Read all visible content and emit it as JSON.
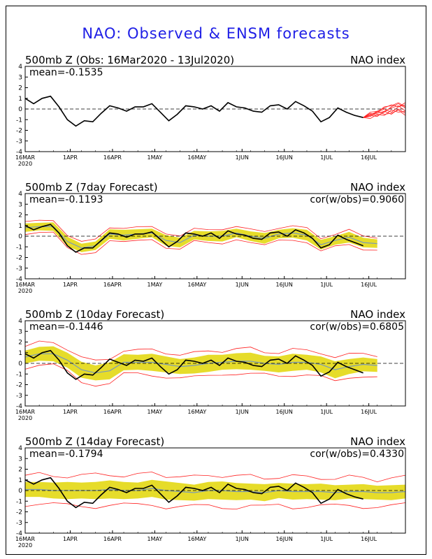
{
  "page": {
    "title": "NAO: Observed & ENSM forecasts",
    "title_color": "#1f1fe6"
  },
  "colors": {
    "observed": "#000000",
    "ensemble_spread": "#e6dc2a",
    "ensemble_members": "#ff2020",
    "ensemble_mean": "#7a9ab8",
    "zero_line": "#000000"
  },
  "chart_data": [
    {
      "type": "line",
      "title": "500mb Z (Obs: 16Mar2020 - 13Jul2020)",
      "index_label": "NAO index",
      "stat_label": "mean=-0.1535",
      "cor_label": "",
      "ylim": [
        -4,
        4
      ],
      "yticks": [
        "4",
        "3",
        "2",
        "1",
        "0",
        "-1",
        "-2",
        "-3",
        "-4"
      ],
      "xlim_days": [
        0,
        135
      ],
      "xticks": [
        {
          "label": "16MAR",
          "sub": "2020",
          "day": 0
        },
        {
          "label": "1APR",
          "sub": "",
          "day": 16
        },
        {
          "label": "16APR",
          "sub": "",
          "day": 31
        },
        {
          "label": "1MAY",
          "sub": "",
          "day": 46
        },
        {
          "label": "16MAY",
          "sub": "",
          "day": 61
        },
        {
          "label": "1JUN",
          "sub": "",
          "day": 77
        },
        {
          "label": "16JUN",
          "sub": "",
          "day": 92
        },
        {
          "label": "1JUL",
          "sub": "",
          "day": 107
        },
        {
          "label": "16JUL",
          "sub": "",
          "day": 122
        }
      ],
      "observed": {
        "x": [
          0,
          3,
          6,
          9,
          12,
          15,
          18,
          21,
          24,
          27,
          30,
          33,
          36,
          39,
          42,
          45,
          48,
          51,
          54,
          57,
          60,
          63,
          66,
          69,
          72,
          75,
          78,
          81,
          84,
          87,
          90,
          93,
          96,
          99,
          102,
          105,
          108,
          111,
          114,
          117,
          120
        ],
        "y": [
          1.0,
          0.5,
          1.0,
          1.2,
          0.2,
          -1.0,
          -1.6,
          -1.1,
          -1.2,
          -0.4,
          0.3,
          0.1,
          -0.2,
          0.2,
          0.2,
          0.5,
          -0.3,
          -1.1,
          -0.5,
          0.3,
          0.2,
          0.0,
          0.3,
          -0.2,
          0.6,
          0.2,
          0.1,
          -0.2,
          -0.3,
          0.3,
          0.4,
          0.0,
          0.7,
          0.3,
          -0.2,
          -1.2,
          -0.8,
          0.1,
          -0.3,
          -0.6,
          -0.8
        ]
      },
      "members_from_day": 120,
      "members_to_day": 135,
      "members": [
        [
          -0.8,
          -0.5,
          -0.4,
          -0.2,
          0.1,
          0.3,
          -0.2
        ],
        [
          -0.8,
          -0.7,
          -0.3,
          0.0,
          -0.3,
          0.2,
          0.4
        ],
        [
          -0.8,
          -0.6,
          -0.2,
          -0.5,
          -0.4,
          -0.1,
          -0.6
        ],
        [
          -0.8,
          -0.4,
          -0.6,
          -0.3,
          0.2,
          0.5,
          0.1
        ],
        [
          -0.8,
          -0.9,
          -0.5,
          -0.6,
          -0.1,
          -0.3,
          -0.2
        ],
        [
          -0.8,
          -0.5,
          -0.3,
          0.2,
          0.3,
          0.6,
          0.2
        ],
        [
          -0.8,
          -0.6,
          -0.7,
          -0.2,
          -0.5,
          0.0,
          -0.4
        ],
        [
          -0.8,
          -0.3,
          -0.2,
          0.1,
          0.4,
          0.2,
          0.6
        ]
      ]
    },
    {
      "type": "line",
      "title": "500mb Z (7day Forecast)",
      "index_label": "NAO index",
      "stat_label": "mean=-0.1193",
      "cor_label": "cor(w/obs)=0.9060",
      "ylim": [
        -4,
        4
      ],
      "yticks": [
        "4",
        "3",
        "2",
        "1",
        "0",
        "-1",
        "-2",
        "-3",
        "-4"
      ],
      "xlim_days": [
        0,
        135
      ],
      "xticks": [
        {
          "label": "16MAR",
          "sub": "2020",
          "day": 0
        },
        {
          "label": "1APR",
          "sub": "",
          "day": 16
        },
        {
          "label": "16APR",
          "sub": "",
          "day": 31
        },
        {
          "label": "1MAY",
          "sub": "",
          "day": 46
        },
        {
          "label": "16MAY",
          "sub": "",
          "day": 61
        },
        {
          "label": "1JUN",
          "sub": "",
          "day": 77
        },
        {
          "label": "16JUN",
          "sub": "",
          "day": 92
        },
        {
          "label": "1JUL",
          "sub": "",
          "day": 107
        },
        {
          "label": "16JUL",
          "sub": "",
          "day": 122
        }
      ],
      "observed": {
        "x": [
          0,
          3,
          6,
          9,
          12,
          15,
          18,
          21,
          24,
          27,
          30,
          33,
          36,
          39,
          42,
          45,
          48,
          51,
          54,
          57,
          60,
          63,
          66,
          69,
          72,
          75,
          78,
          81,
          84,
          87,
          90,
          93,
          96,
          99,
          102,
          105,
          108,
          111,
          114,
          117,
          120
        ],
        "y": [
          1.0,
          0.6,
          0.9,
          1.1,
          0.3,
          -0.9,
          -1.5,
          -1.1,
          -1.1,
          -0.4,
          0.3,
          0.2,
          -0.1,
          0.2,
          0.2,
          0.4,
          -0.3,
          -1.0,
          -0.5,
          0.3,
          0.2,
          0.0,
          0.3,
          -0.2,
          0.5,
          0.2,
          0.1,
          -0.2,
          -0.3,
          0.3,
          0.4,
          0.0,
          0.6,
          0.3,
          -0.2,
          -1.1,
          -0.8,
          0.1,
          -0.3,
          -0.6,
          -0.9
        ]
      },
      "mean": {
        "x": [
          0,
          5,
          10,
          15,
          20,
          25,
          30,
          35,
          40,
          45,
          50,
          55,
          60,
          65,
          70,
          75,
          80,
          85,
          90,
          95,
          100,
          105,
          110,
          115,
          120,
          125
        ],
        "y": [
          0.8,
          0.9,
          0.9,
          -0.5,
          -1.1,
          -0.9,
          0.2,
          0.1,
          0.2,
          0.3,
          -0.4,
          -0.6,
          0.1,
          0.0,
          0.0,
          0.3,
          0.0,
          -0.2,
          0.2,
          0.3,
          0.1,
          -0.8,
          -0.4,
          -0.1,
          -0.6,
          -0.7
        ]
      },
      "band_half_width": [
        0.4,
        0.35,
        0.4,
        0.45,
        0.4,
        0.4,
        0.45,
        0.5,
        0.45,
        0.4,
        0.5,
        0.45,
        0.4,
        0.45,
        0.5,
        0.4,
        0.45,
        0.5,
        0.4,
        0.45,
        0.5,
        0.45,
        0.4,
        0.5,
        0.45,
        0.4
      ],
      "envelope_extra": 0.25
    },
    {
      "type": "line",
      "title": "500mb Z (10day Forecast)",
      "index_label": "NAO index",
      "stat_label": "mean=-0.1446",
      "cor_label": "cor(w/obs)=0.6805",
      "ylim": [
        -4,
        4
      ],
      "yticks": [
        "4",
        "3",
        "2",
        "1",
        "0",
        "-1",
        "-2",
        "-3",
        "-4"
      ],
      "xlim_days": [
        0,
        135
      ],
      "xticks": [
        {
          "label": "16MAR",
          "sub": "2020",
          "day": 0
        },
        {
          "label": "1APR",
          "sub": "",
          "day": 16
        },
        {
          "label": "16APR",
          "sub": "",
          "day": 31
        },
        {
          "label": "1MAY",
          "sub": "",
          "day": 46
        },
        {
          "label": "16MAY",
          "sub": "",
          "day": 61
        },
        {
          "label": "1JUN",
          "sub": "",
          "day": 77
        },
        {
          "label": "16JUN",
          "sub": "",
          "day": 92
        },
        {
          "label": "1JUL",
          "sub": "",
          "day": 107
        },
        {
          "label": "16JUL",
          "sub": "",
          "day": 122
        }
      ],
      "observed": {
        "x": [
          0,
          3,
          6,
          9,
          12,
          15,
          18,
          21,
          24,
          27,
          30,
          33,
          36,
          39,
          42,
          45,
          48,
          51,
          54,
          57,
          60,
          63,
          66,
          69,
          72,
          75,
          78,
          81,
          84,
          87,
          90,
          93,
          96,
          99,
          102,
          105,
          108,
          111,
          114,
          117,
          120
        ],
        "y": [
          0.9,
          0.5,
          1.0,
          1.2,
          0.3,
          -0.9,
          -1.5,
          -1.0,
          -1.1,
          -0.4,
          0.4,
          0.1,
          -0.2,
          0.3,
          0.2,
          0.5,
          -0.3,
          -1.0,
          -0.6,
          0.3,
          0.2,
          0.0,
          0.3,
          -0.2,
          0.5,
          0.2,
          0.1,
          -0.2,
          -0.3,
          0.3,
          0.4,
          0.0,
          0.7,
          0.3,
          -0.2,
          -1.2,
          -0.8,
          0.1,
          -0.3,
          -0.6,
          -0.9
        ]
      },
      "mean": {
        "x": [
          0,
          5,
          10,
          15,
          20,
          25,
          30,
          35,
          40,
          45,
          50,
          55,
          60,
          65,
          70,
          75,
          80,
          85,
          90,
          95,
          100,
          105,
          110,
          115,
          120,
          125
        ],
        "y": [
          0.6,
          0.9,
          0.9,
          0.3,
          -0.6,
          -0.9,
          -0.7,
          0.1,
          0.1,
          0.1,
          -0.1,
          -0.3,
          -0.2,
          0.0,
          0.1,
          0.2,
          0.2,
          0.0,
          -0.1,
          0.1,
          0.1,
          -0.1,
          -0.6,
          -0.3,
          -0.1,
          -0.2
        ]
      },
      "band_half_width": [
        0.6,
        0.65,
        0.7,
        0.7,
        0.75,
        0.7,
        0.8,
        0.75,
        0.7,
        0.8,
        0.75,
        0.7,
        0.75,
        0.8,
        0.7,
        0.75,
        0.8,
        0.7,
        0.75,
        0.8,
        0.7,
        0.75,
        0.8,
        0.7,
        0.65,
        0.6
      ],
      "envelope_extra": 0.55
    },
    {
      "type": "line",
      "title": "500mb Z (14day Forecast)",
      "index_label": "NAO index",
      "stat_label": "mean=-0.1794",
      "cor_label": "cor(w/obs)=0.4330",
      "ylim": [
        -4,
        4
      ],
      "yticks": [
        "4",
        "3",
        "2",
        "1",
        "0",
        "-1",
        "-2",
        "-3",
        "-4"
      ],
      "xlim_days": [
        0,
        135
      ],
      "xticks": [
        {
          "label": "16MAR",
          "sub": "2020",
          "day": 0
        },
        {
          "label": "1APR",
          "sub": "",
          "day": 16
        },
        {
          "label": "16APR",
          "sub": "",
          "day": 31
        },
        {
          "label": "1MAY",
          "sub": "",
          "day": 46
        },
        {
          "label": "16MAY",
          "sub": "",
          "day": 61
        },
        {
          "label": "1JUN",
          "sub": "",
          "day": 77
        },
        {
          "label": "16JUN",
          "sub": "",
          "day": 92
        },
        {
          "label": "1JUL",
          "sub": "",
          "day": 107
        },
        {
          "label": "16JUL",
          "sub": "",
          "day": 122
        }
      ],
      "observed": {
        "x": [
          0,
          3,
          6,
          9,
          12,
          15,
          18,
          21,
          24,
          27,
          30,
          33,
          36,
          39,
          42,
          45,
          48,
          51,
          54,
          57,
          60,
          63,
          66,
          69,
          72,
          75,
          78,
          81,
          84,
          87,
          90,
          93,
          96,
          99,
          102,
          105,
          108,
          111,
          114,
          117,
          120
        ],
        "y": [
          1.0,
          0.6,
          1.0,
          1.2,
          0.2,
          -1.0,
          -1.6,
          -1.1,
          -1.2,
          -0.4,
          0.3,
          0.1,
          -0.2,
          0.2,
          0.2,
          0.5,
          -0.3,
          -1.1,
          -0.5,
          0.3,
          0.2,
          0.0,
          0.3,
          -0.2,
          0.6,
          0.2,
          0.1,
          -0.2,
          -0.3,
          0.3,
          0.4,
          0.0,
          0.7,
          0.3,
          -0.2,
          -1.2,
          -0.8,
          0.1,
          -0.3,
          -0.6,
          -0.8
        ]
      },
      "mean": {
        "x": [
          0,
          5,
          10,
          15,
          20,
          25,
          30,
          35,
          40,
          45,
          50,
          55,
          60,
          65,
          70,
          75,
          80,
          85,
          90,
          95,
          100,
          105,
          110,
          115,
          120,
          125,
          130,
          135
        ],
        "y": [
          0.1,
          0.1,
          0.0,
          0.0,
          0.0,
          0.0,
          0.1,
          0.0,
          0.0,
          0.2,
          0.0,
          -0.1,
          -0.2,
          0.0,
          0.0,
          -0.1,
          -0.1,
          -0.2,
          0.0,
          -0.1,
          -0.1,
          -0.1,
          -0.2,
          -0.1,
          -0.1,
          -0.2,
          -0.2,
          -0.1
        ]
      },
      "band_half_width": [
        0.7,
        0.7,
        0.75,
        0.8,
        0.75,
        0.8,
        0.85,
        0.8,
        0.75,
        0.8,
        0.85,
        0.8,
        0.75,
        0.8,
        0.85,
        0.8,
        0.75,
        0.8,
        0.7,
        0.75,
        0.7,
        0.75,
        0.7,
        0.65,
        0.7,
        0.65,
        0.7,
        0.65
      ],
      "envelope_extra": 0.9
    }
  ]
}
